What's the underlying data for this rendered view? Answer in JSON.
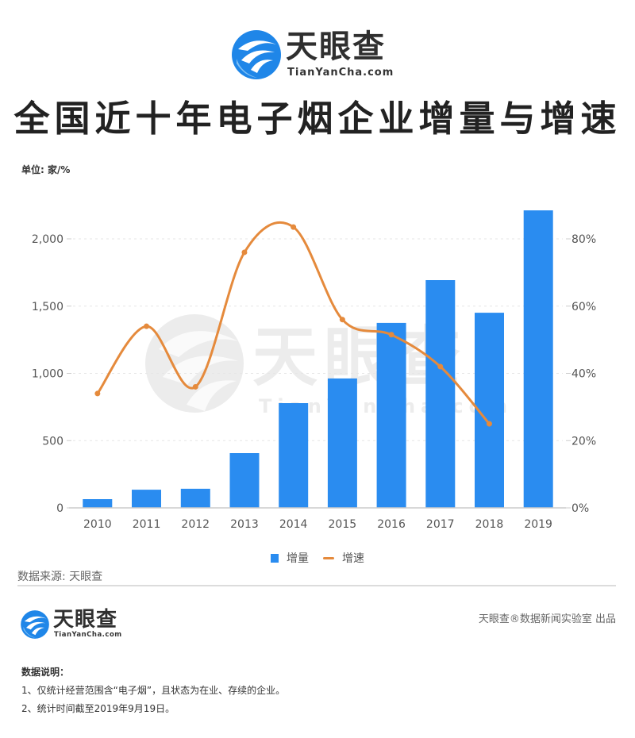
{
  "header": {
    "logo_cn": "天眼查",
    "logo_en": "TianYanCha.com",
    "title": "全国近十年电子烟企业增量与增速",
    "unit": "单位: 家/%"
  },
  "colors": {
    "bar": "#2a8cf0",
    "line": "#e58a3c",
    "grid": "#e6e6e6",
    "axis_text": "#555555"
  },
  "chart_data": {
    "type": "bar+line",
    "title": "全国近十年电子烟企业增量与增速",
    "categories": [
      "2010",
      "2011",
      "2012",
      "2013",
      "2014",
      "2015",
      "2016",
      "2017",
      "2018",
      "2019"
    ],
    "series": [
      {
        "name": "增量",
        "type": "bar",
        "axis": "left",
        "values": [
          65,
          135,
          142,
          407,
          779,
          962,
          1375,
          1693,
          1451,
          2212
        ]
      },
      {
        "name": "增速",
        "type": "line",
        "axis": "right",
        "unit": "%",
        "values": [
          34,
          54,
          36,
          76,
          83.5,
          56,
          51.5,
          42,
          25,
          null
        ]
      }
    ],
    "y_left": {
      "min": 0,
      "max": 2000,
      "ticks": [
        0,
        500,
        1000,
        1500,
        2000
      ],
      "tick_labels": [
        "0",
        "500",
        "1,000",
        "1,500",
        "2,000"
      ]
    },
    "y_right": {
      "min": 0,
      "max": 80,
      "ticks": [
        0,
        20,
        40,
        60,
        80
      ],
      "tick_labels": [
        "0%",
        "20%",
        "40%",
        "60%",
        "80%"
      ]
    },
    "xlabel": "",
    "ylabel": "",
    "grid": true,
    "legend_position": "bottom"
  },
  "legend": {
    "bar_label": "增量",
    "line_label": "增速"
  },
  "watermark": {
    "cn": "天眼查",
    "en": "TianYanCha.com"
  },
  "footer": {
    "source": "数据来源: 天眼查",
    "credit": "天眼查®数据新闻实验室 出品",
    "logo_cn": "天眼查",
    "logo_en": "TianYanCha.com",
    "notes_title": "数据说明：",
    "notes": [
      "1、仅统计经营范围含“电子烟”，且状态为在业、存续的企业。",
      "2、统计时间截至2019年9月19日。"
    ]
  }
}
